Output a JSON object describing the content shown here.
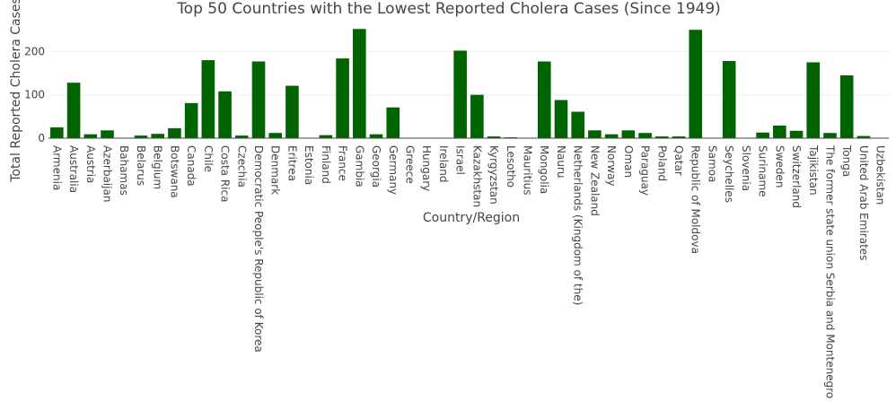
{
  "chart_data": {
    "type": "bar",
    "title": "Top 50 Countries with the Lowest Reported Cholera Cases (Since 1949)",
    "xlabel": "Country/Region",
    "ylabel": "Total Reported Cholera Cases",
    "ylim": [
      0,
      265
    ],
    "yticks": [
      0,
      100,
      200
    ],
    "grid": true,
    "legend": "none",
    "bar_color": "#006400",
    "categories": [
      "Armenia",
      "Australia",
      "Austria",
      "Azerbaijan",
      "Bahamas",
      "Belarus",
      "Belgium",
      "Botswana",
      "Canada",
      "Chile",
      "Costa Rica",
      "Czechia",
      "Democratic People's Republic of Korea",
      "Denmark",
      "Eritrea",
      "Estonia",
      "Finland",
      "France",
      "Gambia",
      "Georgia",
      "Germany",
      "Greece",
      "Hungary",
      "Ireland",
      "Israel",
      "Kazakhstan",
      "Kyrgyzstan",
      "Lesotho",
      "Mauritius",
      "Mongolia",
      "Nauru",
      "Netherlands (Kingdom of the)",
      "New Zealand",
      "Norway",
      "Oman",
      "Paraguay",
      "Poland",
      "Qatar",
      "Republic of Moldova",
      "Samoa",
      "Seychelles",
      "Slovenia",
      "Suriname",
      "Sweden",
      "Switzerland",
      "Tajikistan",
      "The former state union Serbia and Montenegro",
      "Tonga",
      "United Arab Emirates",
      "Uzbekistan"
    ],
    "values": [
      25,
      128,
      9,
      18,
      1,
      6,
      10,
      23,
      81,
      180,
      108,
      6,
      177,
      12,
      121,
      1,
      7,
      184,
      252,
      9,
      71,
      1,
      1,
      1,
      202,
      100,
      4,
      2,
      1,
      177,
      88,
      61,
      18,
      9,
      18,
      12,
      4,
      4,
      250,
      1,
      178,
      1,
      13,
      29,
      17,
      175,
      12,
      145,
      5,
      1
    ]
  }
}
